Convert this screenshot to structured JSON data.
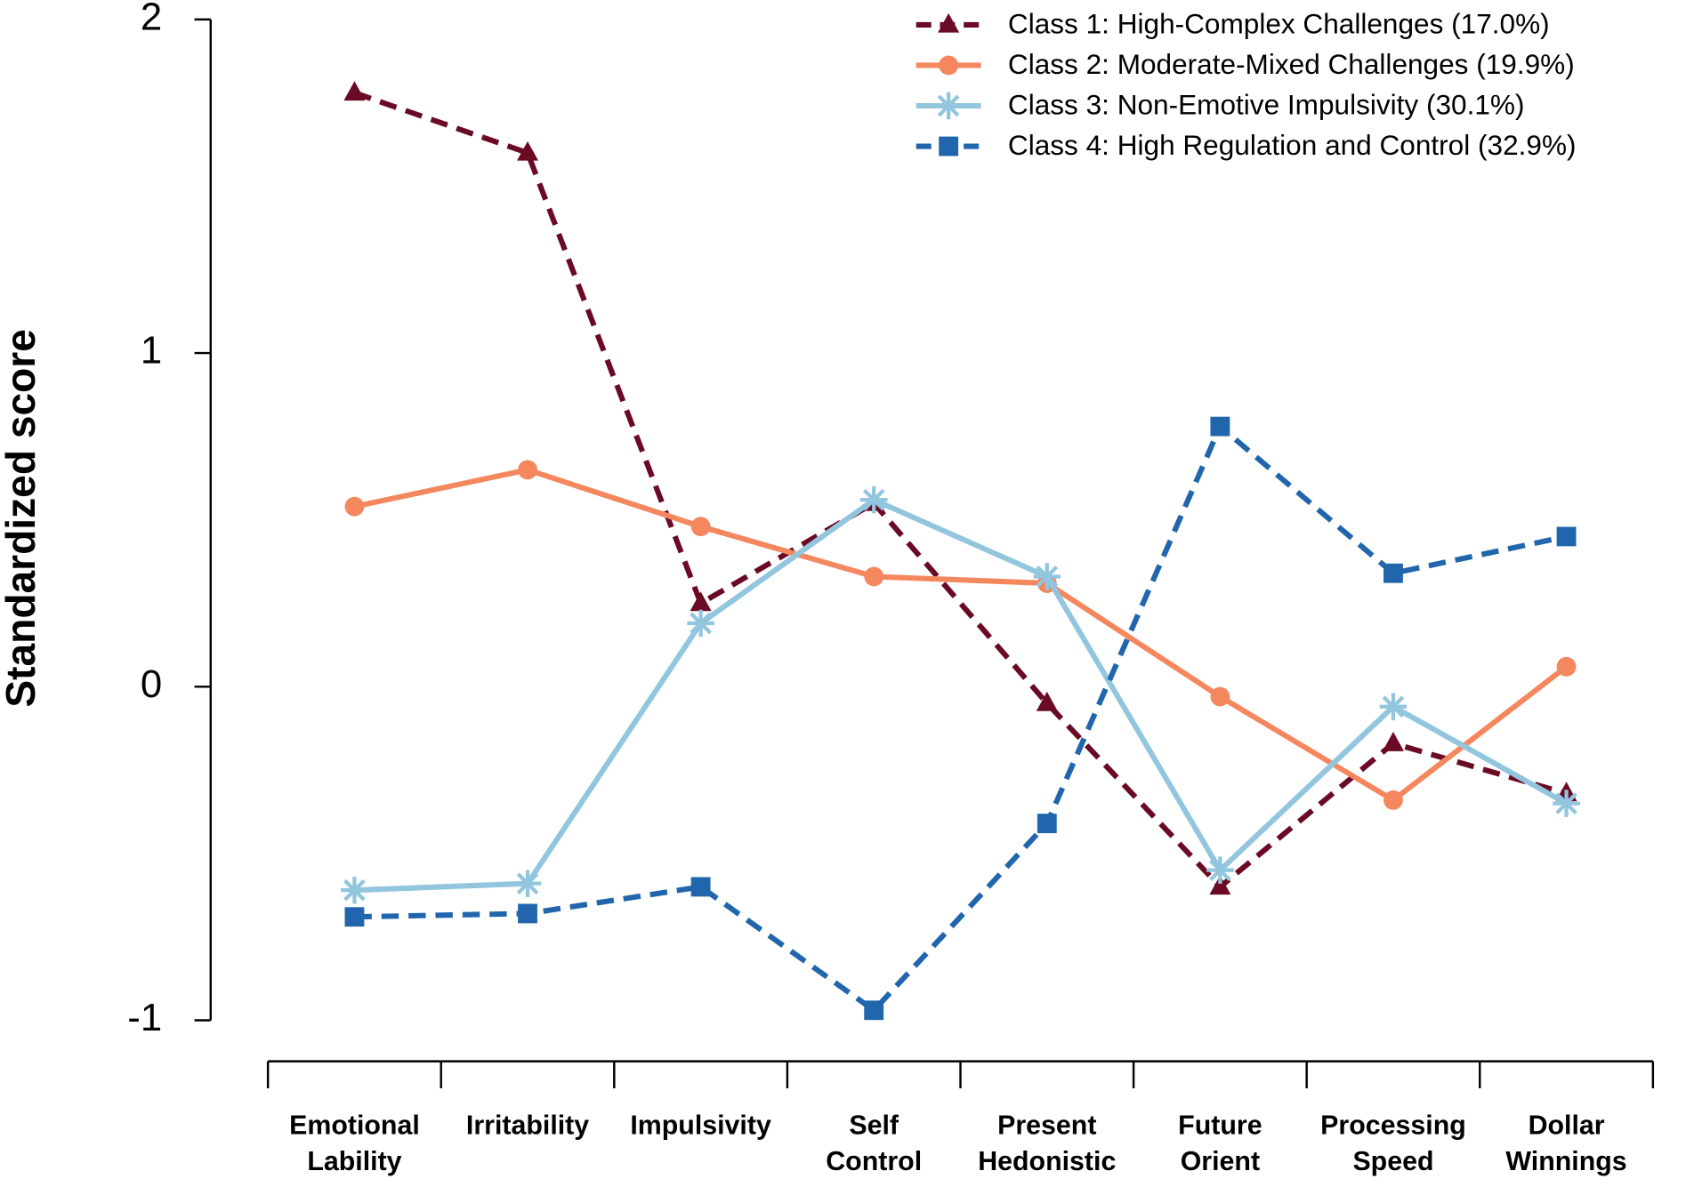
{
  "chart_data": {
    "type": "line",
    "y_label": "Standardized score",
    "categories": [
      [
        "Emotional",
        "Lability"
      ],
      [
        "Irritability"
      ],
      [
        "Impulsivity"
      ],
      [
        "Self",
        "Control"
      ],
      [
        "Present",
        "Hedonistic"
      ],
      [
        "Future",
        "Orient"
      ],
      [
        "Processing",
        "Speed"
      ],
      [
        "Dollar",
        "Winnings"
      ]
    ],
    "series": [
      {
        "name": "Class 1: High-Complex Challenges (17.0%)",
        "color": "#6b0a24",
        "marker": "triangle",
        "dashed": true,
        "values": [
          1.78,
          1.6,
          0.25,
          0.55,
          -0.05,
          -0.6,
          -0.17,
          -0.32
        ]
      },
      {
        "name": "Class 2: Moderate-Mixed Challenges (19.9%)",
        "color": "#f4875e",
        "marker": "circle",
        "dashed": false,
        "values": [
          0.54,
          0.65,
          0.48,
          0.33,
          0.31,
          -0.03,
          -0.34,
          0.06
        ]
      },
      {
        "name": "Class 3: Non-Emotive Impulsivity (30.1%)",
        "color": "#92c5de",
        "marker": "asterisk",
        "dashed": false,
        "values": [
          -0.61,
          -0.59,
          0.19,
          0.56,
          0.33,
          -0.55,
          -0.06,
          -0.35
        ]
      },
      {
        "name": "Class 4: High Regulation and Control (32.9%)",
        "color": "#2166ac",
        "marker": "square",
        "dashed": true,
        "values": [
          -0.69,
          -0.68,
          -0.6,
          -0.97,
          -0.41,
          0.78,
          0.34,
          0.45
        ]
      }
    ],
    "ylim": [
      -1,
      2
    ],
    "yticks": [
      -1,
      0,
      1,
      2
    ],
    "grid": false,
    "legend": "top-right"
  }
}
